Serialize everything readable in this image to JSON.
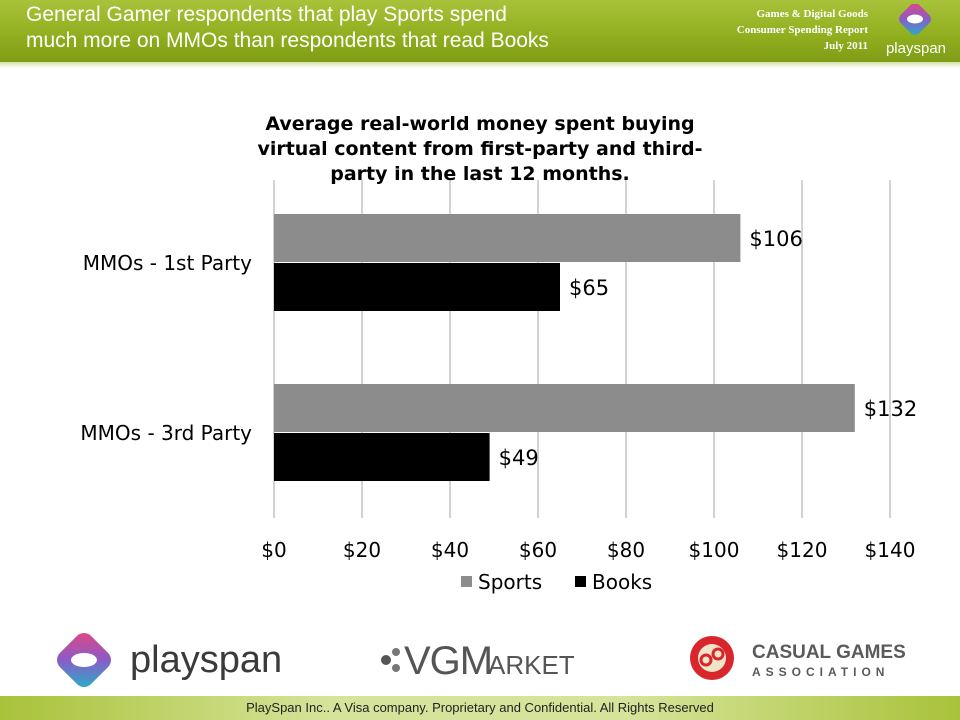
{
  "header": {
    "title_line1": "General Gamer respondents that play Sports spend",
    "title_line2": "much more on MMOs than respondents that read Books",
    "report_line1": "Games & Digital Goods",
    "report_line2": "Consumer Spending Report",
    "report_line3": "July 2011",
    "brand": "playspan"
  },
  "chart_data": {
    "type": "bar",
    "orientation": "horizontal",
    "title": "Average real-world money spent buying virtual content from first-party and third-party in the last 12 months.",
    "title_lines": [
      "Average real-world money spent buying",
      "virtual content from first-party and third-",
      "party in the last 12 months."
    ],
    "categories": [
      "MMOs - 1st Party",
      "MMOs - 3rd Party"
    ],
    "series": [
      {
        "name": "Sports",
        "values": [
          106,
          132
        ],
        "labels": [
          "$106",
          "$132"
        ],
        "color": "#8c8c8c"
      },
      {
        "name": "Books",
        "values": [
          65,
          49
        ],
        "labels": [
          "$65",
          "$49"
        ],
        "color": "#000000"
      }
    ],
    "xlim": [
      0,
      140
    ],
    "x_ticks": [
      0,
      20,
      40,
      60,
      80,
      100,
      120,
      140
    ],
    "x_tick_labels": [
      "$0",
      "$20",
      "$40",
      "$60",
      "$80",
      "$100",
      "$120",
      "$140"
    ],
    "grid": true,
    "legend_position": "bottom"
  },
  "logos": {
    "playspan": "playspan",
    "vgm": "VGM",
    "vgm_suffix": "ARKET",
    "cga_line1": "CASUAL GAMES",
    "cga_line2": "ASSOCIATION"
  },
  "footer": {
    "text": "PlaySpan Inc.. A Visa company. Proprietary and Confidential. All Rights Reserved"
  }
}
